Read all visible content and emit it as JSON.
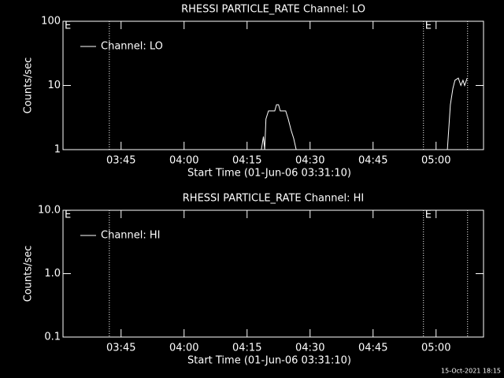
{
  "chart_data": [
    {
      "type": "line",
      "title": "RHESSI PARTICLE_RATE Channel: LO",
      "xlabel": "Start Time (01-Jun-06 03:31:10)",
      "ylabel": "Counts/sec",
      "xlim": [
        211.17,
        311.3
      ],
      "xticks": [
        {
          "value": 225,
          "label": "03:45"
        },
        {
          "value": 240,
          "label": "04:00"
        },
        {
          "value": 255,
          "label": "04:15"
        },
        {
          "value": 270,
          "label": "04:30"
        },
        {
          "value": 285,
          "label": "04:45"
        },
        {
          "value": 300,
          "label": "05:00"
        }
      ],
      "ylim": [
        1,
        100
      ],
      "yticks": [
        1,
        10,
        100
      ],
      "log_y": true,
      "legend": "upper left",
      "vlines": [
        222.2,
        297.0,
        307.5
      ],
      "annotations": [
        {
          "x": 211.17,
          "text": "E"
        },
        {
          "x": 297.0,
          "text": "E"
        }
      ],
      "series": [
        {
          "name": "Channel: LO",
          "color": "#ffffff",
          "x": [
            258.4,
            258.9,
            259.2,
            259.5,
            260.1,
            261.6,
            262.0,
            262.5,
            262.9,
            264.2,
            264.8,
            265.5,
            266.1,
            266.7,
            null,
            302.7,
            303.4,
            304.0,
            304.5,
            305.3,
            305.9,
            306.4,
            306.8,
            307.4
          ],
          "values": [
            1,
            1.6,
            1,
            3,
            4,
            4,
            5,
            5,
            4,
            4,
            3,
            2,
            1.5,
            1,
            null,
            1,
            5,
            9,
            12,
            13,
            10,
            12,
            10,
            13
          ]
        }
      ]
    },
    {
      "type": "line",
      "title": "RHESSI PARTICLE_RATE Channel: HI",
      "xlabel": "Start Time (01-Jun-06 03:31:10)",
      "ylabel": "Counts/sec",
      "xlim": [
        211.17,
        311.3
      ],
      "xticks": [
        {
          "value": 225,
          "label": "03:45"
        },
        {
          "value": 240,
          "label": "04:00"
        },
        {
          "value": 255,
          "label": "04:15"
        },
        {
          "value": 270,
          "label": "04:30"
        },
        {
          "value": 285,
          "label": "04:45"
        },
        {
          "value": 300,
          "label": "05:00"
        }
      ],
      "ylim": [
        0.1,
        10
      ],
      "yticks": [
        0.1,
        {
          "value": 1,
          "label": "1.0"
        },
        {
          "value": 10,
          "label": "10.0"
        }
      ],
      "log_y": true,
      "legend": "upper left",
      "vlines": [
        222.2,
        297.0,
        307.5
      ],
      "annotations": [
        {
          "x": 211.17,
          "text": "E"
        },
        {
          "x": 297.0,
          "text": "E"
        }
      ],
      "series": [
        {
          "name": "Channel: HI",
          "color": "#ffffff",
          "x": [],
          "values": []
        }
      ]
    }
  ],
  "footer": "15-Oct-2021 18:15"
}
